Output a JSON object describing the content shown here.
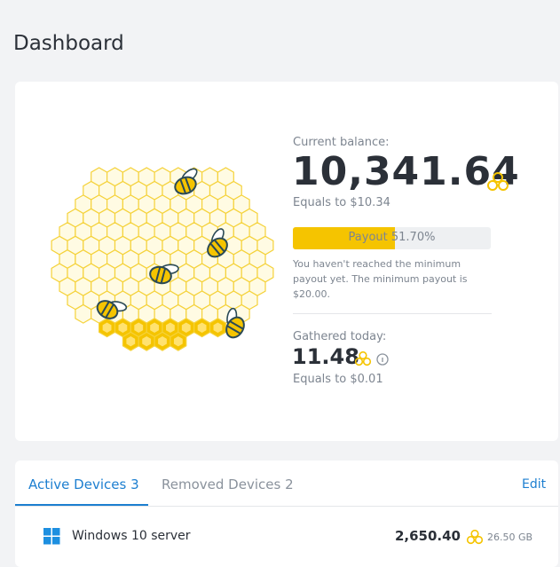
{
  "header": {
    "title": "Dashboard"
  },
  "balance": {
    "label": "Current balance:",
    "amount": "10,341.64",
    "equals": "Equals to $10.34"
  },
  "progress": {
    "label": "Payout 51.70%",
    "value": 51.7
  },
  "notice": "You haven't reached the minimum payout yet. The minimum payout is $20.00.",
  "today": {
    "label": "Gathered today:",
    "amount": "11.48",
    "equals": "Equals to $0.01"
  },
  "tabs": [
    {
      "label": "Active Devices",
      "count": "3"
    },
    {
      "label": "Removed Devices",
      "count": "2"
    }
  ],
  "edit": "Edit",
  "devices": [
    {
      "name": "Windows 10 server",
      "amount": "2,650.40",
      "traffic": "26.50 GB"
    }
  ]
}
